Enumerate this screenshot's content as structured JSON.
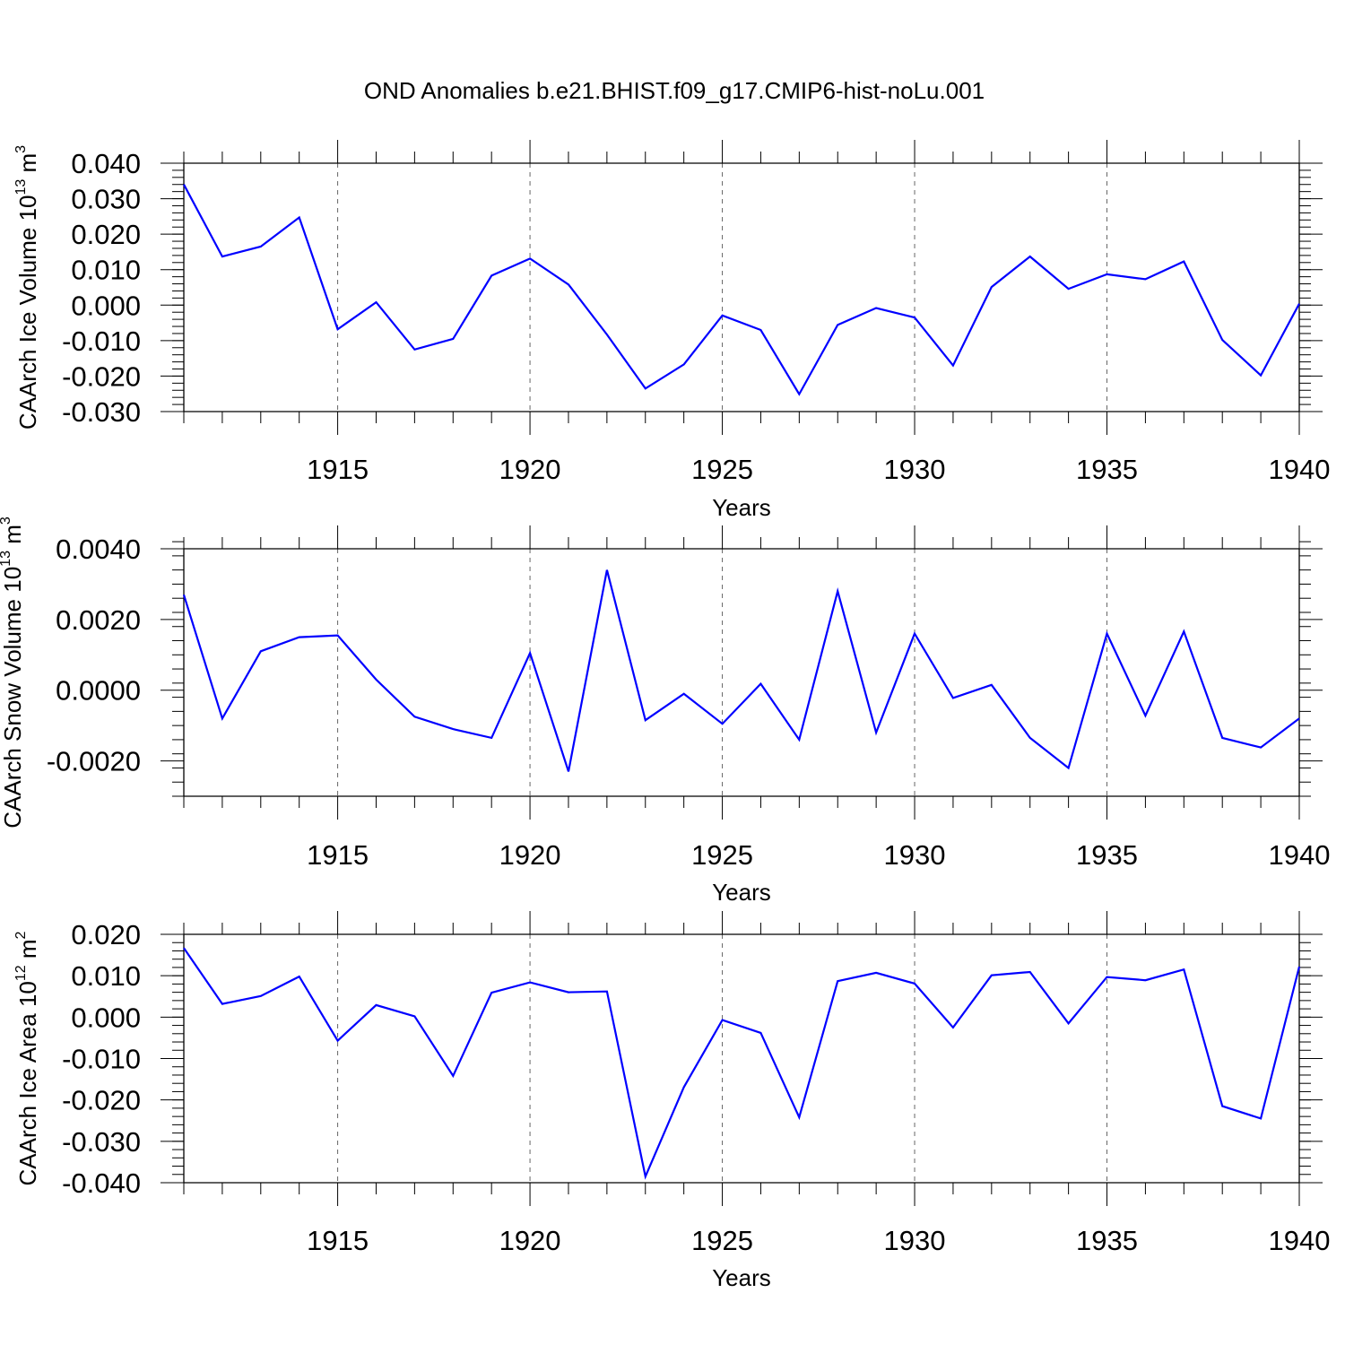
{
  "title": "OND Anomalies b.e21.BHIST.f09_g17.CMIP6-hist-noLu.001",
  "colors": {
    "line": "#0000ff",
    "axis": "#000000",
    "grid": "#666666"
  },
  "chart_data": [
    {
      "type": "line",
      "ylabel": {
        "text": "CAArch Ice Volume 10",
        "exp": "13",
        "unit": " m",
        "unit_exp": "3"
      },
      "xlabel": "Years",
      "xlim": [
        1911,
        1940
      ],
      "ylim": [
        -0.03,
        0.04
      ],
      "yticks": [
        -0.03,
        -0.02,
        -0.01,
        0.0,
        0.01,
        0.02,
        0.03,
        0.04
      ],
      "ytick_labels": [
        "-0.030",
        "-0.020",
        "-0.010",
        "0.000",
        "0.010",
        "0.020",
        "0.030",
        "0.040"
      ],
      "xticks": [
        1915,
        1920,
        1925,
        1930,
        1935,
        1940
      ],
      "xtick_labels": [
        "1915",
        "1920",
        "1925",
        "1930",
        "1935",
        "1940"
      ],
      "x": [
        1911,
        1912,
        1913,
        1914,
        1915,
        1916,
        1917,
        1918,
        1919,
        1920,
        1921,
        1922,
        1923,
        1924,
        1925,
        1926,
        1927,
        1928,
        1929,
        1930,
        1931,
        1932,
        1933,
        1934,
        1935,
        1936,
        1937,
        1938,
        1939,
        1940
      ],
      "values": [
        0.034,
        0.0137,
        0.0165,
        0.0247,
        -0.0068,
        0.0008,
        -0.0125,
        -0.0095,
        0.0083,
        0.0131,
        0.0058,
        -0.0083,
        -0.0235,
        -0.0167,
        -0.0029,
        -0.007,
        -0.0251,
        -0.0056,
        -0.0008,
        -0.0035,
        -0.017,
        0.0051,
        0.0137,
        0.0046,
        0.0087,
        0.0073,
        0.0123,
        -0.0098,
        -0.0198,
        0.0004
      ]
    },
    {
      "type": "line",
      "ylabel": {
        "text": "CAArch Snow Volume 10",
        "exp": "13",
        "unit": " m",
        "unit_exp": "3"
      },
      "xlabel": "Years",
      "xlim": [
        1911,
        1940
      ],
      "ylim": [
        -0.003,
        0.004
      ],
      "yticks": [
        -0.002,
        0.0,
        0.002,
        0.004
      ],
      "ytick_labels": [
        "-0.0020",
        "0.0000",
        "0.0020",
        "0.0040"
      ],
      "xticks": [
        1915,
        1920,
        1925,
        1930,
        1935,
        1940
      ],
      "xtick_labels": [
        "1915",
        "1920",
        "1925",
        "1930",
        "1935",
        "1940"
      ],
      "x": [
        1911,
        1912,
        1913,
        1914,
        1915,
        1916,
        1917,
        1918,
        1919,
        1920,
        1921,
        1922,
        1923,
        1924,
        1925,
        1926,
        1927,
        1928,
        1929,
        1930,
        1931,
        1932,
        1933,
        1934,
        1935,
        1936,
        1937,
        1938,
        1939,
        1940
      ],
      "values": [
        0.0027,
        -0.0008,
        0.0011,
        0.0015,
        0.00155,
        0.0003,
        -0.00075,
        -0.0011,
        -0.00135,
        0.00105,
        -0.0023,
        0.0034,
        -0.00085,
        -0.0001,
        -0.00095,
        0.00018,
        -0.0014,
        0.0028,
        -0.0012,
        0.0016,
        -0.00022,
        0.00015,
        -0.00135,
        -0.0022,
        0.0016,
        -0.00072,
        0.00166,
        -0.00135,
        -0.00162,
        -0.0008
      ]
    },
    {
      "type": "line",
      "ylabel": {
        "text": "CAArch Ice Area 10",
        "exp": "12",
        "unit": " m",
        "unit_exp": "2"
      },
      "xlabel": "Years",
      "xlim": [
        1911,
        1940
      ],
      "ylim": [
        -0.04,
        0.02
      ],
      "yticks": [
        -0.04,
        -0.03,
        -0.02,
        -0.01,
        0.0,
        0.01,
        0.02
      ],
      "ytick_labels": [
        "-0.040",
        "-0.030",
        "-0.020",
        "-0.010",
        "0.000",
        "0.010",
        "0.020"
      ],
      "xticks": [
        1915,
        1920,
        1925,
        1930,
        1935,
        1940
      ],
      "xtick_labels": [
        "1915",
        "1920",
        "1925",
        "1930",
        "1935",
        "1940"
      ],
      "x": [
        1911,
        1912,
        1913,
        1914,
        1915,
        1916,
        1917,
        1918,
        1919,
        1920,
        1921,
        1922,
        1923,
        1924,
        1925,
        1926,
        1927,
        1928,
        1929,
        1930,
        1931,
        1932,
        1933,
        1934,
        1935,
        1936,
        1937,
        1938,
        1939,
        1940
      ],
      "values": [
        0.0167,
        0.0032,
        0.0051,
        0.0098,
        -0.0057,
        0.0029,
        0.0002,
        -0.0142,
        0.0059,
        0.0084,
        0.006,
        0.0062,
        -0.0385,
        -0.0169,
        -0.0007,
        -0.0038,
        -0.0242,
        0.0087,
        0.0107,
        0.0081,
        -0.0025,
        0.0101,
        0.0109,
        -0.0015,
        0.0097,
        0.0089,
        0.0115,
        -0.0215,
        -0.0245,
        0.0122
      ]
    }
  ]
}
